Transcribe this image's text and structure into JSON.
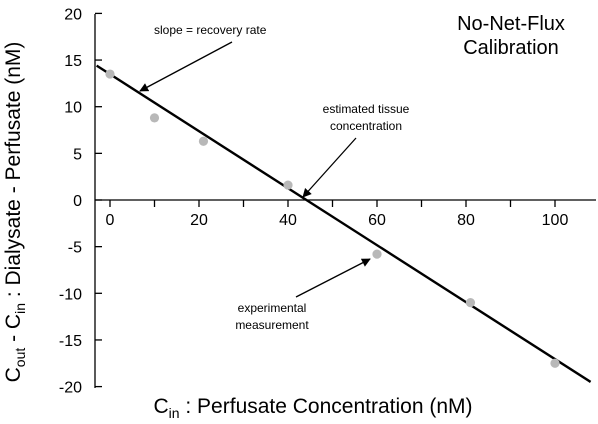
{
  "chart_data": {
    "type": "scatter",
    "title_lines": [
      "No-Net-Flux",
      "Calibration"
    ],
    "xlabel": {
      "main": "C",
      "sub": "in",
      "rest": " : Perfusate Concentration (nM)"
    },
    "ylabel": {
      "p1": "C",
      "s1": "out",
      "p2": " - C",
      "s2": "in",
      "p3": " : Dialysate - Perfusate (nM)"
    },
    "x_ticks": [
      0,
      20,
      40,
      60,
      80,
      100
    ],
    "y_ticks": [
      20,
      15,
      10,
      5,
      0,
      -5,
      -10,
      -15,
      -20
    ],
    "y_tick_labels": [
      "20",
      "15",
      "10",
      "5",
      "0",
      "-5",
      "-10",
      "-15",
      "-20"
    ],
    "x_tick_labels": [
      "0",
      "20",
      "40",
      "60",
      "80",
      "100"
    ],
    "xlim": [
      -3,
      110
    ],
    "ylim": [
      -20,
      20
    ],
    "series": [
      {
        "x": [
          0,
          10,
          21,
          40,
          60,
          81,
          100
        ],
        "y": [
          13.5,
          8.8,
          6.3,
          1.6,
          -5.8,
          -11.0,
          -17.5
        ]
      }
    ],
    "fit_line": {
      "x1": -3,
      "y1": 14.4,
      "x2": 108,
      "y2": -19.5
    },
    "point_color": "#b8b8b8",
    "line_color": "#000000",
    "annotations": [
      {
        "text": [
          "slope = recovery rate"
        ],
        "target": [
          7,
          11.5
        ]
      },
      {
        "text": [
          "estimated tissue",
          "concentration"
        ],
        "target": [
          43.5,
          0.3
        ]
      },
      {
        "text": [
          "experimental",
          "measurement"
        ],
        "target": [
          59.5,
          -5.2
        ]
      }
    ]
  }
}
